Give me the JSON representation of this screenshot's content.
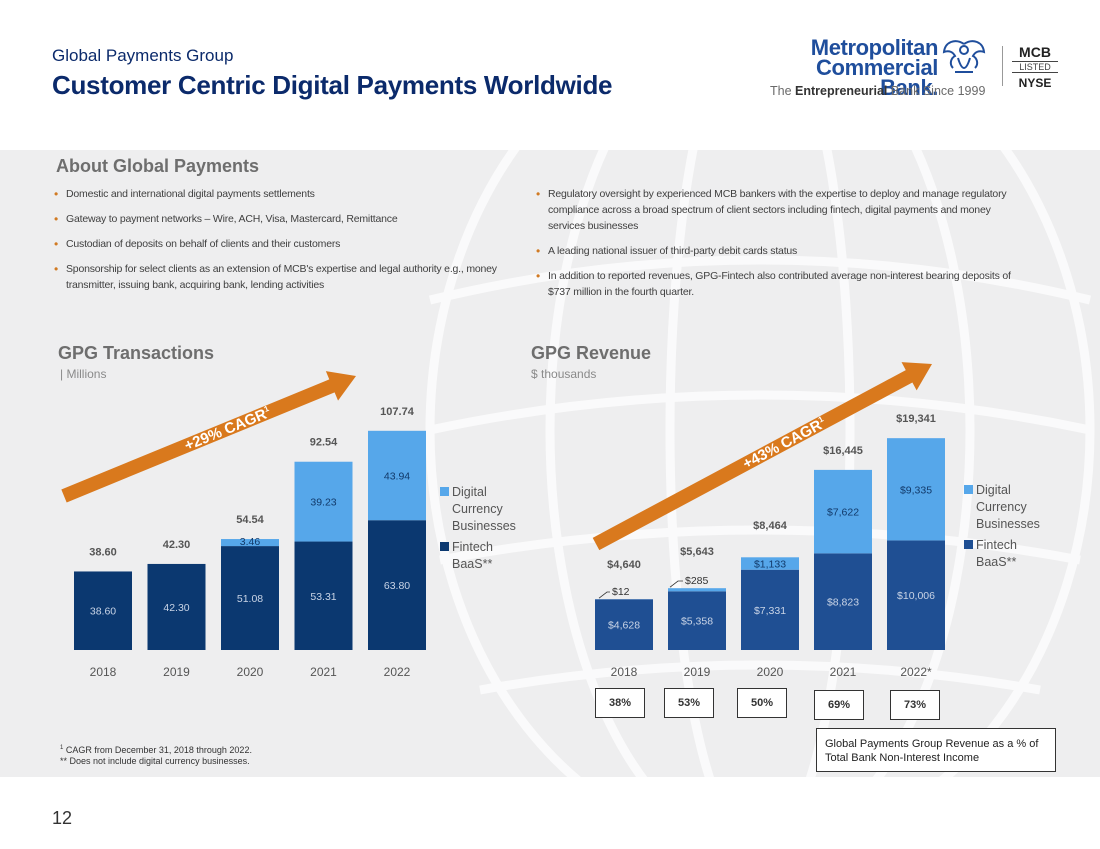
{
  "header": {
    "subtitle": "Global Payments Group",
    "title": "Customer Centric Digital Payments Worldwide"
  },
  "logo": {
    "line1": "Metropolitan",
    "line2": "Commercial Bank.",
    "tag_pre": "The ",
    "tag_bold": "Entrepreneurial",
    "tag_post": " Bank Since 1999",
    "listing_top": "MCB",
    "listing_mid": "LISTED",
    "listing_bottom": "NYSE"
  },
  "about": {
    "title": "About Global Payments",
    "left_bullets": [
      "Domestic and international digital payments settlements",
      "Gateway to payment networks – Wire, ACH, Visa, Mastercard, Remittance",
      "Custodian of deposits on behalf of clients and their customers",
      "Sponsorship for select clients as an extension of MCB's expertise and legal authority e.g., money transmitter, issuing bank, acquiring bank, lending activities"
    ],
    "right_bullets": [
      "Regulatory oversight by experienced MCB bankers with the expertise to deploy and manage regulatory compliance across a broad spectrum of client sectors including fintech, digital payments and money services businesses",
      "A leading national issuer of third-party debit cards status",
      "In addition to reported revenues, GPG-Fintech also contributed average non-interest bearing deposits of $737 million in the fourth quarter."
    ]
  },
  "colors": {
    "fintech": "#0b3870",
    "digital": "#56a7ea",
    "arrow": "#d9791d",
    "revenue_fintech": "#1f4f93"
  },
  "chart_data": [
    {
      "type": "bar",
      "title": "GPG Transactions",
      "subtitle": "| Millions",
      "categories": [
        "2018",
        "2019",
        "2020",
        "2021",
        "2022"
      ],
      "series": [
        {
          "name": "Fintech BaaS**",
          "values": [
            38.6,
            42.3,
            51.08,
            53.31,
            63.8
          ],
          "labels": [
            "38.60",
            "42.30",
            "51.08",
            "53.31",
            "63.80"
          ]
        },
        {
          "name": "Digital Currency Businesses",
          "values": [
            0,
            0,
            3.46,
            39.23,
            43.94
          ],
          "labels": [
            "",
            "",
            "3.46",
            "39.23",
            "43.94"
          ]
        }
      ],
      "totals": [
        "38.60",
        "42.30",
        "54.54",
        "92.54",
        "107.74"
      ],
      "ylim": [
        0,
        116
      ],
      "cagr": "+29% CAGR",
      "cagr_sup": "1",
      "legend": {
        "digital_lines": [
          "Digital",
          "Currency",
          "Businesses"
        ],
        "fintech_lines": [
          "Fintech",
          "BaaS**"
        ]
      }
    },
    {
      "type": "bar",
      "title": "GPG Revenue",
      "subtitle": "$ thousands",
      "categories": [
        "2018",
        "2019",
        "2020",
        "2021",
        "2022*"
      ],
      "series": [
        {
          "name": "Fintech BaaS**",
          "values": [
            4628,
            5358,
            7331,
            8823,
            10006
          ],
          "labels": [
            "$4,628",
            "$5,358",
            "$7,331",
            "$8,823",
            "$10,006"
          ]
        },
        {
          "name": "Digital Currency Businesses",
          "values": [
            12,
            285,
            1133,
            7622,
            9335
          ],
          "labels": [
            "$12",
            "$285",
            "$1,133",
            "$7,622",
            "$9,335"
          ]
        }
      ],
      "totals": [
        "$4,640",
        "$5,643",
        "$8,464",
        "$16,445",
        "$19,341"
      ],
      "ylim": [
        0,
        21000
      ],
      "cagr": "+43% CAGR",
      "cagr_sup": "1",
      "share_of_noninterest_income": [
        "38%",
        "53%",
        "50%",
        "69%",
        "73%"
      ],
      "share_note": "Global Payments Group Revenue as a % of Total Bank Non-Interest Income",
      "legend": {
        "digital_lines": [
          "Digital",
          "Currency",
          "Businesses"
        ],
        "fintech_lines": [
          "Fintech",
          "BaaS**"
        ]
      }
    }
  ],
  "footnotes": {
    "line1_sup": "1",
    "line1": " CAGR from December 31, 2018 through 2022.",
    "line2": "** Does not include digital currency businesses."
  },
  "page_number": "12"
}
